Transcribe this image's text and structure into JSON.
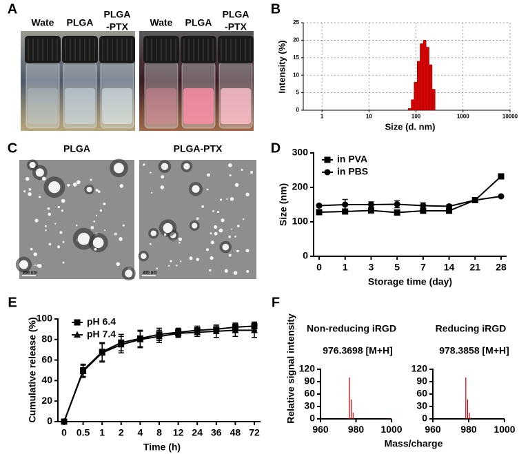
{
  "panel_labels": [
    "A",
    "B",
    "C",
    "D",
    "E",
    "F"
  ],
  "photo_a": {
    "left_labels": [
      [
        "Wate"
      ],
      [
        "PLGA"
      ],
      [
        "PLGA",
        "-PTX"
      ]
    ],
    "right_labels": [
      [
        "Wate"
      ],
      [
        "PLGA"
      ],
      [
        "PLGA",
        "-PTX"
      ]
    ]
  },
  "photo_c": {
    "labels": [
      "PLGA",
      "PLGA-PTX"
    ],
    "scale_bars": [
      "200 nm",
      "200 nm"
    ]
  },
  "chart_data": [
    {
      "type": "histogram",
      "log_x": true,
      "xlabel": "Size (d. nm)",
      "ylabel": "Intensity (%)",
      "bins": [
        68,
        79,
        91,
        106,
        122,
        142,
        164,
        190,
        220,
        255
      ],
      "counts": [
        0.5,
        3,
        8,
        14,
        19,
        20,
        18,
        13,
        6
      ],
      "color": "#dd0000",
      "xlim": [
        0.4,
        10000
      ],
      "xticks": [
        1,
        10,
        100,
        1000,
        10000
      ],
      "ylim": [
        0,
        25
      ],
      "yticks": [
        0,
        5,
        10,
        15,
        20,
        25
      ],
      "grid": true
    },
    {
      "type": "line",
      "xlabel": "Storage time (day)",
      "ylabel": "Size (nm)",
      "categories": [
        "0",
        "1",
        "3",
        "5",
        "7",
        "14",
        "21",
        "28"
      ],
      "series": [
        {
          "name": "in PVA",
          "marker": "square",
          "color": "#000000",
          "values": [
            128,
            130,
            133,
            127,
            132,
            132,
            163,
            232
          ],
          "errors": [
            5,
            5,
            5,
            5,
            5,
            5,
            3,
            4
          ]
        },
        {
          "name": "in PBS",
          "marker": "circle",
          "color": "#000000",
          "values": [
            147,
            150,
            150,
            151,
            147,
            145,
            163,
            174
          ],
          "errors": [
            4,
            15,
            8,
            10,
            8,
            5,
            4,
            3
          ]
        }
      ],
      "ylim": [
        0,
        300
      ],
      "yticks": [
        0,
        100,
        200,
        300
      ],
      "legend": "top-left"
    },
    {
      "type": "line",
      "xlabel": "Time (h)",
      "ylabel": "Cumulative release (%)",
      "categories": [
        "0",
        "0.5",
        "1",
        "2",
        "4",
        "8",
        "12",
        "24",
        "36",
        "48",
        "72"
      ],
      "series": [
        {
          "name": "pH 6.4",
          "marker": "square",
          "color": "#000000",
          "values": [
            0,
            50,
            68,
            77,
            81,
            85,
            87,
            89,
            90,
            92,
            93
          ],
          "errors": [
            0,
            6,
            9,
            8,
            8,
            6,
            4,
            4,
            4,
            4,
            4
          ]
        },
        {
          "name": "pH 7.4",
          "marker": "triangle",
          "color": "#000000",
          "values": [
            0,
            49,
            67,
            75,
            80,
            83,
            86,
            87,
            88,
            89,
            89
          ],
          "errors": [
            0,
            6,
            9,
            8,
            8,
            6,
            4,
            4,
            6,
            6,
            7
          ]
        }
      ],
      "ylim": [
        0,
        100
      ],
      "yticks": [
        0,
        20,
        40,
        60,
        80,
        100
      ],
      "legend": "top-left"
    },
    {
      "type": "stem",
      "title": "Non-reducing iRGD",
      "annotation": "976.3698 [M+H]",
      "ylabel": "Relative signal intensity",
      "color": "#cc0000",
      "x": [
        975,
        976.37,
        977.37,
        978.37,
        998.5
      ],
      "values": [
        1,
        100,
        47,
        15,
        2
      ],
      "xlim": [
        960,
        1000
      ],
      "xticks": [
        960,
        980,
        1000
      ],
      "ylim": [
        0,
        120
      ],
      "yticks": [
        0,
        30,
        60,
        90,
        120
      ]
    },
    {
      "type": "stem",
      "title": "Reducing iRGD",
      "annotation": "978.3858 [M+H]",
      "xlabel": "Mass/charge",
      "color": "#cc0000",
      "x": [
        977,
        978.39,
        979.39,
        980.39,
        981.4
      ],
      "values": [
        1,
        100,
        47,
        15,
        3
      ],
      "xlim": [
        960,
        1000
      ],
      "xticks": [
        960,
        980,
        1000
      ],
      "ylim": [
        0,
        120
      ],
      "yticks": [
        0,
        30,
        60,
        90,
        120
      ]
    }
  ]
}
